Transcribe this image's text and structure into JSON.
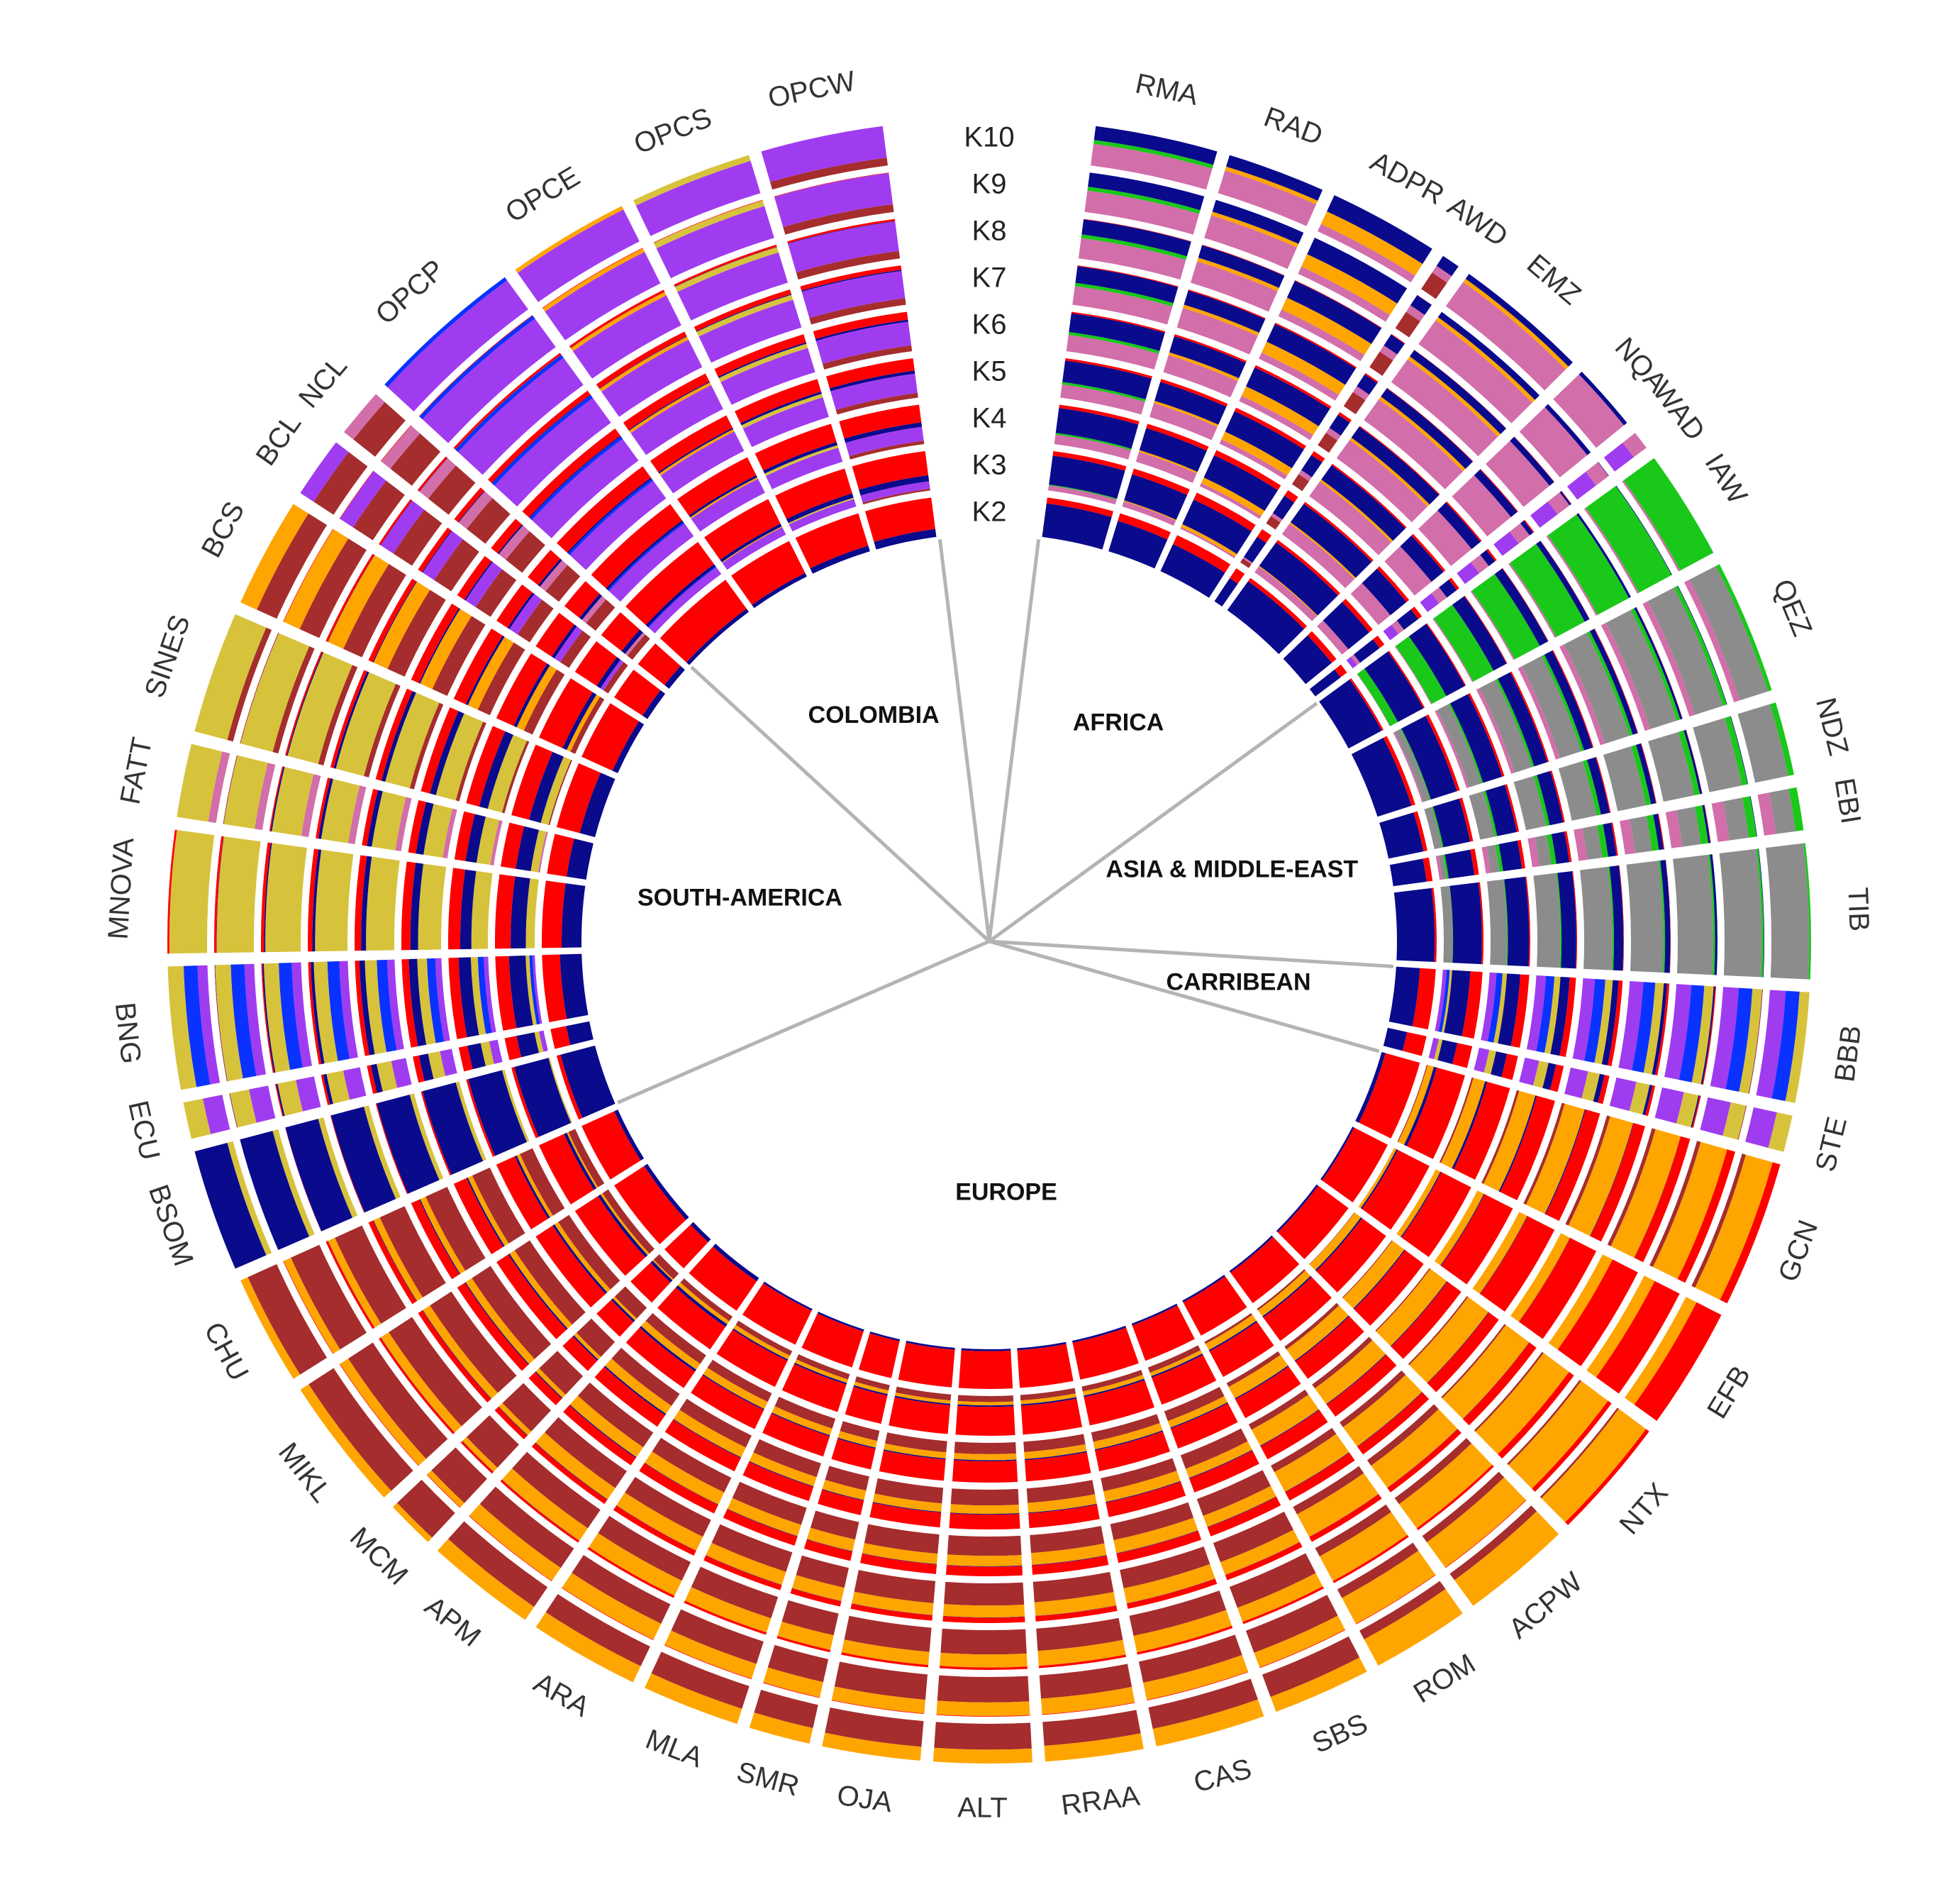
{
  "chart_data": {
    "type": "circular-admixture",
    "title": "",
    "colors": {
      "red": "#ff0000",
      "navy": "#0a0a8c",
      "khaki": "#d7c23c",
      "green": "#19c819",
      "orange": "#ffa500",
      "purple": "#a03cf0",
      "pink": "#d26eaa",
      "brown": "#a52d2d",
      "blue": "#0a32ff",
      "gray": "#8c8c8c",
      "divider": "#b4b4b4"
    },
    "k_labels": [
      "K2",
      "K3",
      "K4",
      "K5",
      "K6",
      "K7",
      "K8",
      "K9",
      "K10"
    ],
    "regions": [
      {
        "name": "AFRICA",
        "populations": [
          "RMA",
          "RAD",
          "ADPR",
          "AWD",
          "EMZ",
          "NQA",
          "WAD"
        ]
      },
      {
        "name": "ASIA & MIDDLE-EAST",
        "populations": [
          "IAW",
          "QEZ",
          "NDZ",
          "EBI",
          "TIB"
        ]
      },
      {
        "name": "CARRIBEAN",
        "populations": [
          "BBB",
          "STE"
        ]
      },
      {
        "name": "EUROPE",
        "populations": [
          "GCN",
          "EFB",
          "NTX",
          "ACPW",
          "ROM",
          "SBS",
          "CAS",
          "RRAA",
          "ALT",
          "OJA",
          "SMR",
          "MLA",
          "ARA",
          "APM",
          "MCM",
          "MIKL",
          "CHU"
        ]
      },
      {
        "name": "SOUTH-AMERICA",
        "populations": [
          "BSOM",
          "ECU",
          "BNG",
          "MNOVA",
          "FATT",
          "SINES",
          "BCS",
          "BCL",
          "NCL"
        ]
      },
      {
        "name": "COLOMBIA",
        "populations": [
          "OPCP",
          "OPCE",
          "OPCS",
          "OPCW"
        ]
      }
    ],
    "populations": [
      {
        "name": "RMA",
        "size": 1.0,
        "K2": {
          "red": 0.15,
          "navy": 0.85
        },
        "K10": {
          "pink": 0.55,
          "navy": 0.35,
          "green": 0.1
        }
      },
      {
        "name": "RAD",
        "size": 0.8,
        "K2": {
          "red": 0.2,
          "navy": 0.8
        },
        "K10": {
          "pink": 0.6,
          "navy": 0.3,
          "orange": 0.1
        }
      },
      {
        "name": "ADPR",
        "size": 0.9,
        "K2": {
          "red": 0.25,
          "navy": 0.75
        },
        "K10": {
          "navy": 0.45,
          "orange": 0.35,
          "pink": 0.2
        }
      },
      {
        "name": "AWD",
        "size": 0.15,
        "K2": {
          "red": 0.3,
          "navy": 0.7
        },
        "K10": {
          "brown": 0.5,
          "navy": 0.3,
          "pink": 0.2
        }
      },
      {
        "name": "EMZ",
        "size": 1.1,
        "K2": {
          "red": 0.1,
          "navy": 0.9
        },
        "K10": {
          "pink": 0.75,
          "navy": 0.15,
          "orange": 0.1
        }
      },
      {
        "name": "NQA",
        "size": 0.55,
        "K2": {
          "red": 0.15,
          "navy": 0.85
        },
        "K10": {
          "pink": 0.9,
          "navy": 0.1
        }
      },
      {
        "name": "WAD",
        "size": 0.15,
        "K2": {
          "red": 0.2,
          "navy": 0.8
        },
        "K10": {
          "purple": 0.6,
          "pink": 0.4
        }
      },
      {
        "name": "IAW",
        "size": 0.9,
        "K2": {
          "red": 0.05,
          "navy": 0.95
        },
        "K10": {
          "green": 0.95,
          "pink": 0.05
        }
      },
      {
        "name": "QEZ",
        "size": 1.1,
        "K2": {
          "red": 0.1,
          "navy": 0.9
        },
        "K10": {
          "gray": 0.75,
          "pink": 0.15,
          "green": 0.1
        }
      },
      {
        "name": "NDZ",
        "size": 0.6,
        "K2": {
          "red": 0.1,
          "navy": 0.9
        },
        "K10": {
          "gray": 0.85,
          "green": 0.15
        }
      },
      {
        "name": "EBI",
        "size": 0.35,
        "K2": {
          "red": 0.15,
          "navy": 0.85
        },
        "K10": {
          "gray": 0.5,
          "pink": 0.3,
          "green": 0.2
        }
      },
      {
        "name": "TIB",
        "size": 1.1,
        "K2": {
          "red": 0.05,
          "navy": 0.95
        },
        "K10": {
          "gray": 0.95,
          "green": 0.05
        }
      },
      {
        "name": "BBB",
        "size": 0.9,
        "K2": {
          "red": 0.4,
          "navy": 0.6
        },
        "K10": {
          "blue": 0.35,
          "purple": 0.4,
          "khaki": 0.25
        }
      },
      {
        "name": "STE",
        "size": 0.3,
        "K2": {
          "red": 0.5,
          "navy": 0.5
        },
        "K10": {
          "purple": 0.6,
          "khaki": 0.4
        }
      },
      {
        "name": "GCN",
        "size": 1.2,
        "K2": {
          "red": 0.9,
          "navy": 0.1
        },
        "K10": {
          "orange": 0.7,
          "red": 0.2,
          "brown": 0.1
        }
      },
      {
        "name": "EFB",
        "size": 1.0,
        "K2": {
          "red": 0.95,
          "navy": 0.05
        },
        "K10": {
          "red": 0.7,
          "orange": 0.3
        }
      },
      {
        "name": "NTX",
        "size": 1.0,
        "K2": {
          "red": 0.95,
          "navy": 0.05
        },
        "K10": {
          "orange": 0.85,
          "red": 0.1,
          "brown": 0.05
        }
      },
      {
        "name": "ACPW",
        "size": 0.9,
        "K2": {
          "red": 0.95,
          "navy": 0.05
        },
        "K10": {
          "orange": 0.8,
          "brown": 0.2
        }
      },
      {
        "name": "ROM",
        "size": 0.8,
        "K2": {
          "red": 0.95,
          "navy": 0.05
        },
        "K10": {
          "orange": 0.75,
          "brown": 0.25
        }
      },
      {
        "name": "SBS",
        "size": 0.8,
        "K2": {
          "red": 0.95,
          "navy": 0.05
        },
        "K10": {
          "brown": 0.6,
          "orange": 0.4
        }
      },
      {
        "name": "CAS",
        "size": 0.9,
        "K2": {
          "red": 0.95,
          "navy": 0.05
        },
        "K10": {
          "brown": 0.55,
          "orange": 0.45
        }
      },
      {
        "name": "RRAA",
        "size": 0.8,
        "K2": {
          "red": 0.95,
          "navy": 0.05
        },
        "K10": {
          "brown": 0.6,
          "orange": 0.4
        }
      },
      {
        "name": "ALT",
        "size": 0.8,
        "K2": {
          "red": 0.95,
          "navy": 0.05
        },
        "K10": {
          "brown": 0.65,
          "orange": 0.35
        }
      },
      {
        "name": "OJA",
        "size": 0.8,
        "K2": {
          "red": 0.95,
          "navy": 0.05
        },
        "K10": {
          "brown": 0.65,
          "orange": 0.35
        }
      },
      {
        "name": "SMR",
        "size": 0.5,
        "K2": {
          "red": 0.95,
          "navy": 0.05
        },
        "K10": {
          "brown": 0.6,
          "orange": 0.4
        }
      },
      {
        "name": "MLA",
        "size": 0.8,
        "K2": {
          "red": 0.95,
          "navy": 0.05
        },
        "K10": {
          "brown": 0.6,
          "orange": 0.4
        }
      },
      {
        "name": "ARA",
        "size": 0.9,
        "K2": {
          "red": 0.95,
          "navy": 0.05
        },
        "K10": {
          "brown": 0.55,
          "orange": 0.45
        }
      },
      {
        "name": "APM",
        "size": 0.9,
        "K2": {
          "red": 0.9,
          "navy": 0.1
        },
        "K10": {
          "brown": 0.6,
          "orange": 0.4
        }
      },
      {
        "name": "MCM",
        "size": 0.4,
        "K2": {
          "red": 0.9,
          "navy": 0.1
        },
        "K10": {
          "brown": 0.85,
          "orange": 0.15
        }
      },
      {
        "name": "MIKL",
        "size": 1.1,
        "K2": {
          "red": 0.9,
          "navy": 0.1
        },
        "K10": {
          "brown": 0.75,
          "orange": 0.25
        }
      },
      {
        "name": "CHU",
        "size": 0.9,
        "K2": {
          "red": 0.9,
          "navy": 0.1
        },
        "K10": {
          "brown": 0.8,
          "orange": 0.2
        }
      },
      {
        "name": "BSOM",
        "size": 1.0,
        "K2": {
          "red": 0.1,
          "navy": 0.9
        },
        "K10": {
          "navy": 0.85,
          "khaki": 0.15
        }
      },
      {
        "name": "ECU",
        "size": 0.3,
        "K2": {
          "red": 0.4,
          "navy": 0.6
        },
        "K10": {
          "purple": 0.5,
          "khaki": 0.5
        }
      },
      {
        "name": "BNG",
        "size": 1.0,
        "K2": {
          "red": 0.45,
          "navy": 0.55
        },
        "K10": {
          "blue": 0.35,
          "khaki": 0.4,
          "purple": 0.25
        }
      },
      {
        "name": "MNOVA",
        "size": 1.0,
        "K2": {
          "red": 0.5,
          "navy": 0.5
        },
        "K10": {
          "khaki": 0.95,
          "red": 0.05
        }
      },
      {
        "name": "FATT",
        "size": 0.6,
        "K2": {
          "red": 0.5,
          "navy": 0.5
        },
        "K10": {
          "khaki": 0.8,
          "pink": 0.2
        }
      },
      {
        "name": "SINES",
        "size": 1.0,
        "K2": {
          "red": 0.6,
          "navy": 0.4
        },
        "K10": {
          "khaki": 0.85,
          "brown": 0.15
        }
      },
      {
        "name": "BCS",
        "size": 0.9,
        "K2": {
          "red": 0.85,
          "navy": 0.15
        },
        "K10": {
          "brown": 0.55,
          "orange": 0.45
        }
      },
      {
        "name": "BCL",
        "size": 0.5,
        "K2": {
          "red": 0.85,
          "navy": 0.15
        },
        "K10": {
          "brown": 0.6,
          "purple": 0.4
        }
      },
      {
        "name": "NCL",
        "size": 0.4,
        "K2": {
          "red": 0.85,
          "navy": 0.15
        },
        "K10": {
          "brown": 0.7,
          "pink": 0.3
        }
      },
      {
        "name": "OPCP",
        "size": 1.3,
        "K2": {
          "red": 0.9,
          "navy": 0.1
        },
        "K10": {
          "purple": 0.9,
          "blue": 0.1
        }
      },
      {
        "name": "OPCE",
        "size": 1.0,
        "K2": {
          "red": 0.9,
          "navy": 0.1
        },
        "K10": {
          "purple": 0.9,
          "orange": 0.1
        }
      },
      {
        "name": "OPCS",
        "size": 1.0,
        "K2": {
          "red": 0.85,
          "navy": 0.15
        },
        "K10": {
          "purple": 0.85,
          "khaki": 0.15
        }
      },
      {
        "name": "OPCW",
        "size": 1.0,
        "K2": {
          "red": 0.8,
          "navy": 0.2
        },
        "K10": {
          "purple": 0.8,
          "brown": 0.2
        }
      }
    ]
  }
}
